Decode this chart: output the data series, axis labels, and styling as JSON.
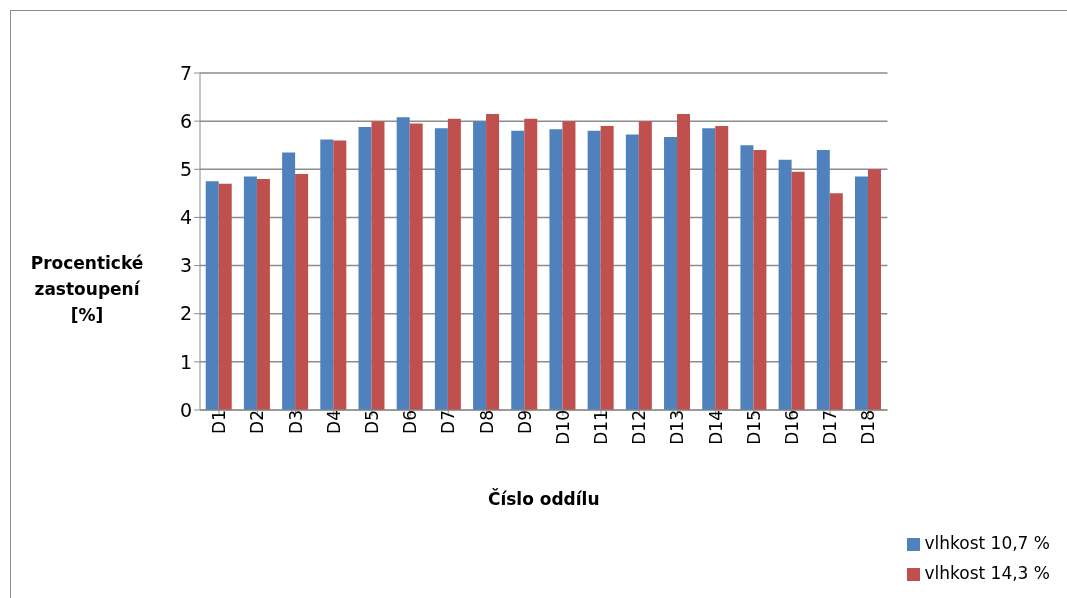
{
  "chart_data": {
    "type": "bar",
    "xlabel": "Číslo oddílu",
    "ylabel": "Procentické zastoupení [%]",
    "categories": [
      "D1",
      "D2",
      "D3",
      "D4",
      "D5",
      "D6",
      "D7",
      "D8",
      "D9",
      "D10",
      "D11",
      "D12",
      "D13",
      "D14",
      "D15",
      "D16",
      "D17",
      "D18"
    ],
    "series": [
      {
        "name": "vlhkost 10,7 %",
        "color": "#4f81bd",
        "values": [
          4.75,
          4.85,
          5.35,
          5.62,
          5.88,
          6.08,
          5.85,
          6.0,
          5.8,
          5.83,
          5.8,
          5.72,
          5.67,
          5.85,
          5.5,
          5.2,
          5.4,
          4.85
        ]
      },
      {
        "name": "vlhkost 14,3 %",
        "color": "#c0504d",
        "values": [
          4.7,
          4.8,
          4.9,
          5.6,
          6.0,
          5.95,
          6.05,
          6.15,
          6.05,
          6.0,
          5.9,
          6.0,
          6.15,
          5.9,
          5.4,
          4.95,
          4.5,
          5.0
        ]
      }
    ],
    "ylim": [
      0,
      7
    ],
    "yticks": [
      0,
      1,
      2,
      3,
      4,
      5,
      6,
      7
    ],
    "grid": "y",
    "legend": "bottom right"
  }
}
